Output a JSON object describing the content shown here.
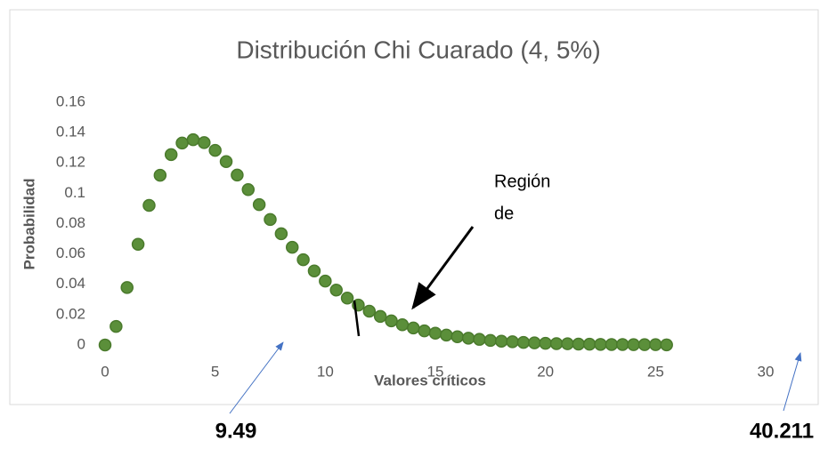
{
  "chart_data": {
    "type": "scatter",
    "title": "Distribución Chi Cuarado (4, 5%)",
    "x_label": "Valores críticos",
    "y_label": "Probabilidad",
    "x": [
      0,
      0.5,
      1,
      1.5,
      2,
      2.5,
      3,
      3.5,
      4,
      4.5,
      5,
      5.5,
      6,
      6.5,
      7,
      7.5,
      8,
      8.5,
      9,
      9.5,
      10,
      10.5,
      11,
      11.5,
      12,
      12.5,
      13,
      13.5,
      14,
      14.5,
      15,
      15.5,
      16,
      16.5,
      17,
      17.5,
      18,
      18.5,
      19,
      19.5,
      20,
      20.5,
      21,
      21.5,
      22,
      22.5,
      23,
      23.5,
      24,
      24.5,
      25,
      25.5
    ],
    "series": [
      {
        "color": "#5b8f3a",
        "values": [
          0,
          0.0122,
          0.0379,
          0.0664,
          0.092,
          0.1119,
          0.1255,
          0.1331,
          0.1353,
          0.1334,
          0.1283,
          0.1209,
          0.112,
          0.1024,
          0.0925,
          0.0827,
          0.0733,
          0.0644,
          0.0562,
          0.0488,
          0.0421,
          0.0362,
          0.0309,
          0.0263,
          0.0223,
          0.0188,
          0.0159,
          0.0133,
          0.0112,
          0.0093,
          0.0078,
          0.0065,
          0.0054,
          0.0045,
          0.0037,
          0.003,
          0.0025,
          0.0021,
          0.0017,
          0.0014,
          0.0011,
          0.0009,
          0.0008,
          0.0006,
          0.0005,
          0.0004,
          0.0003,
          0.0003,
          0.0002,
          0.0002,
          0.0002,
          0.0001
        ]
      }
    ],
    "xlim": [
      0,
      30
    ],
    "xticks": [
      0,
      5,
      10,
      15,
      20,
      25,
      30
    ],
    "ylim": [
      0,
      0.16
    ],
    "yticks": [
      0,
      0.02,
      0.04,
      0.06,
      0.08,
      0.1,
      0.12,
      0.14,
      0.16
    ],
    "annotations": {
      "region": [
        "Región",
        "de"
      ],
      "left_value": "9.49",
      "right_value": "40.211"
    }
  }
}
